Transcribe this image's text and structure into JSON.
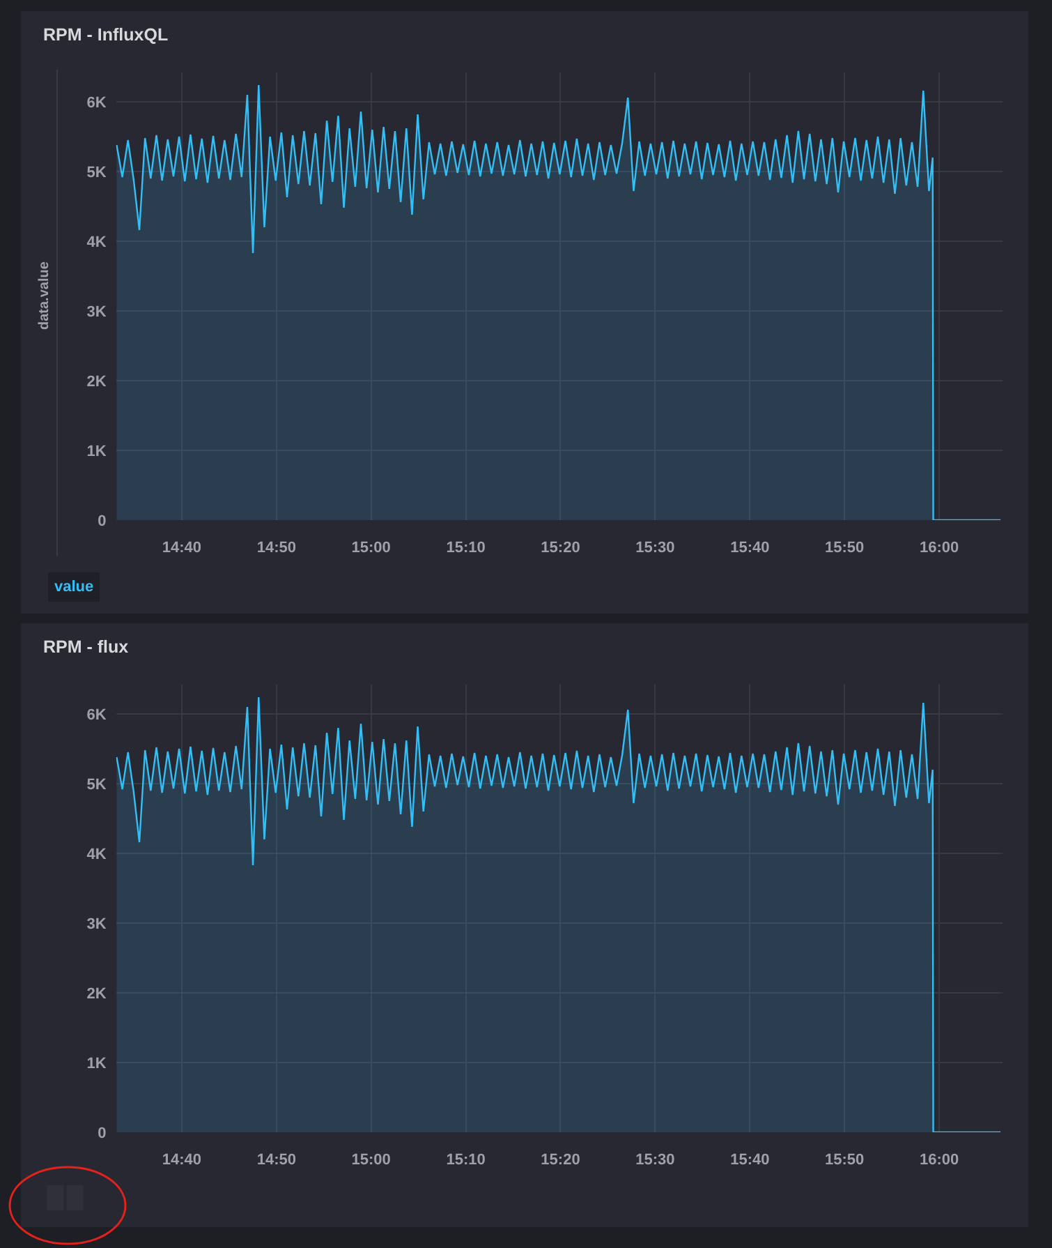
{
  "chart_data": [
    {
      "type": "area",
      "title": "RPM - InfluxQL",
      "ylabel": "data.value",
      "x": [
        14.552,
        14.562,
        14.572,
        14.582,
        14.592,
        14.602,
        14.612,
        14.622,
        14.632,
        14.642,
        14.652,
        14.662,
        14.672,
        14.682,
        14.692,
        14.702,
        14.712,
        14.722,
        14.732,
        14.742,
        14.752,
        14.762,
        14.772,
        14.782,
        14.792,
        14.802,
        14.812,
        14.822,
        14.832,
        14.842,
        14.852,
        14.862,
        14.872,
        14.882,
        14.892,
        14.902,
        14.912,
        14.922,
        14.932,
        14.942,
        14.952,
        14.962,
        14.972,
        14.982,
        14.992,
        15.002,
        15.012,
        15.022,
        15.032,
        15.042,
        15.052,
        15.062,
        15.072,
        15.082,
        15.092,
        15.102,
        15.112,
        15.122,
        15.132,
        15.142,
        15.152,
        15.162,
        15.172,
        15.182,
        15.192,
        15.202,
        15.212,
        15.222,
        15.232,
        15.242,
        15.252,
        15.262,
        15.272,
        15.282,
        15.292,
        15.302,
        15.312,
        15.322,
        15.332,
        15.342,
        15.352,
        15.362,
        15.372,
        15.382,
        15.392,
        15.402,
        15.412,
        15.422,
        15.432,
        15.442,
        15.452,
        15.462,
        15.472,
        15.482,
        15.492,
        15.502,
        15.512,
        15.522,
        15.532,
        15.542,
        15.552,
        15.562,
        15.572,
        15.582,
        15.592,
        15.602,
        15.612,
        15.622,
        15.632,
        15.642,
        15.652,
        15.662,
        15.672,
        15.682,
        15.692,
        15.702,
        15.712,
        15.722,
        15.732,
        15.742,
        15.752,
        15.762,
        15.772,
        15.782,
        15.792,
        15.802,
        15.812,
        15.822,
        15.832,
        15.842,
        15.852,
        15.862,
        15.872,
        15.882,
        15.892,
        15.902,
        15.912,
        15.922,
        15.932,
        15.942,
        15.952,
        15.962,
        15.972,
        15.982,
        15.9885,
        15.9895,
        16.108
      ],
      "series": [
        {
          "name": "value",
          "color": "#33bff5",
          "values": [
            5380,
            4920,
            5450,
            4880,
            4160,
            5480,
            4900,
            5520,
            4870,
            5460,
            4930,
            5500,
            4860,
            5530,
            4890,
            5470,
            4840,
            5510,
            4900,
            5450,
            4880,
            5540,
            4920,
            6100,
            3830,
            6240,
            4200,
            5500,
            4870,
            5560,
            4630,
            5520,
            4820,
            5580,
            4800,
            5550,
            4530,
            5730,
            4850,
            5800,
            4480,
            5620,
            4780,
            5860,
            4760,
            5600,
            4700,
            5640,
            4750,
            5580,
            4560,
            5620,
            4380,
            5820,
            4600,
            5420,
            4960,
            5400,
            4940,
            5430,
            4980,
            5390,
            4950,
            5440,
            4930,
            5400,
            4970,
            5420,
            4940,
            5380,
            4960,
            5450,
            4930,
            5400,
            4950,
            5430,
            4900,
            5410,
            4960,
            5440,
            4920,
            5470,
            4940,
            5400,
            4880,
            5420,
            4950,
            5380,
            4970,
            5410,
            6060,
            4720,
            5430,
            4940,
            5400,
            4960,
            5420,
            4900,
            5440,
            4930,
            5400,
            4960,
            5430,
            4890,
            5410,
            4950,
            5390,
            4920,
            5440,
            4870,
            5400,
            4950,
            5430,
            4940,
            5420,
            4880,
            5460,
            4910,
            5520,
            4840,
            5580,
            4890,
            5540,
            4860,
            5460,
            4820,
            5480,
            4700,
            5430,
            4920,
            5480,
            4870,
            5450,
            4900,
            5500,
            4840,
            5460,
            4680,
            5480,
            4800,
            5420,
            4780,
            6160,
            4720,
            5200,
            0,
            0
          ]
        }
      ],
      "xlim": [
        14.551,
        16.111
      ],
      "xticks": [
        {
          "value": 14.6667,
          "label": "14:40"
        },
        {
          "value": 14.8333,
          "label": "14:50"
        },
        {
          "value": 15,
          "label": "15:00"
        },
        {
          "value": 15.1667,
          "label": "15:10"
        },
        {
          "value": 15.3333,
          "label": "15:20"
        },
        {
          "value": 15.5,
          "label": "15:30"
        },
        {
          "value": 15.6667,
          "label": "15:40"
        },
        {
          "value": 15.8333,
          "label": "15:50"
        },
        {
          "value": 16,
          "label": "16:00"
        }
      ],
      "ylim": [
        0,
        6420
      ],
      "yticks": [
        0,
        {
          "value": 1000,
          "label": "1K"
        },
        {
          "value": 2000,
          "label": "2K"
        },
        {
          "value": 3000,
          "label": "3K"
        },
        {
          "value": 4000,
          "label": "4K"
        },
        {
          "value": 5000,
          "label": "5K"
        },
        {
          "value": 6000,
          "label": "6K"
        }
      ],
      "grid": true,
      "legend": "bottom left"
    },
    {
      "type": "area",
      "title": "RPM - flux",
      "x": [
        14.552,
        14.562,
        14.572,
        14.582,
        14.592,
        14.602,
        14.612,
        14.622,
        14.632,
        14.642,
        14.652,
        14.662,
        14.672,
        14.682,
        14.692,
        14.702,
        14.712,
        14.722,
        14.732,
        14.742,
        14.752,
        14.762,
        14.772,
        14.782,
        14.792,
        14.802,
        14.812,
        14.822,
        14.832,
        14.842,
        14.852,
        14.862,
        14.872,
        14.882,
        14.892,
        14.902,
        14.912,
        14.922,
        14.932,
        14.942,
        14.952,
        14.962,
        14.972,
        14.982,
        14.992,
        15.002,
        15.012,
        15.022,
        15.032,
        15.042,
        15.052,
        15.062,
        15.072,
        15.082,
        15.092,
        15.102,
        15.112,
        15.122,
        15.132,
        15.142,
        15.152,
        15.162,
        15.172,
        15.182,
        15.192,
        15.202,
        15.212,
        15.222,
        15.232,
        15.242,
        15.252,
        15.262,
        15.272,
        15.282,
        15.292,
        15.302,
        15.312,
        15.322,
        15.332,
        15.342,
        15.352,
        15.362,
        15.372,
        15.382,
        15.392,
        15.402,
        15.412,
        15.422,
        15.432,
        15.442,
        15.452,
        15.462,
        15.472,
        15.482,
        15.492,
        15.502,
        15.512,
        15.522,
        15.532,
        15.542,
        15.552,
        15.562,
        15.572,
        15.582,
        15.592,
        15.602,
        15.612,
        15.622,
        15.632,
        15.642,
        15.652,
        15.662,
        15.672,
        15.682,
        15.692,
        15.702,
        15.712,
        15.722,
        15.732,
        15.742,
        15.752,
        15.762,
        15.772,
        15.782,
        15.792,
        15.802,
        15.812,
        15.822,
        15.832,
        15.842,
        15.852,
        15.862,
        15.872,
        15.882,
        15.892,
        15.902,
        15.912,
        15.922,
        15.932,
        15.942,
        15.952,
        15.962,
        15.972,
        15.982,
        15.9885,
        15.9895,
        16.108
      ],
      "series": [
        {
          "color": "#33bff5",
          "values": [
            5380,
            4920,
            5450,
            4880,
            4160,
            5480,
            4900,
            5520,
            4870,
            5460,
            4930,
            5500,
            4860,
            5530,
            4890,
            5470,
            4840,
            5510,
            4900,
            5450,
            4880,
            5540,
            4920,
            6100,
            3830,
            6240,
            4200,
            5500,
            4870,
            5560,
            4630,
            5520,
            4820,
            5580,
            4800,
            5550,
            4530,
            5730,
            4850,
            5800,
            4480,
            5620,
            4780,
            5860,
            4760,
            5600,
            4700,
            5640,
            4750,
            5580,
            4560,
            5620,
            4380,
            5820,
            4600,
            5420,
            4960,
            5400,
            4940,
            5430,
            4980,
            5390,
            4950,
            5440,
            4930,
            5400,
            4970,
            5420,
            4940,
            5380,
            4960,
            5450,
            4930,
            5400,
            4950,
            5430,
            4900,
            5410,
            4960,
            5440,
            4920,
            5470,
            4940,
            5400,
            4880,
            5420,
            4950,
            5380,
            4970,
            5410,
            6060,
            4720,
            5430,
            4940,
            5400,
            4960,
            5420,
            4900,
            5440,
            4930,
            5400,
            4960,
            5430,
            4890,
            5410,
            4950,
            5390,
            4920,
            5440,
            4870,
            5400,
            4950,
            5430,
            4940,
            5420,
            4880,
            5460,
            4910,
            5520,
            4840,
            5580,
            4890,
            5540,
            4860,
            5460,
            4820,
            5480,
            4700,
            5430,
            4920,
            5480,
            4870,
            5450,
            4900,
            5500,
            4840,
            5460,
            4680,
            5480,
            4800,
            5420,
            4780,
            6160,
            4720,
            5200,
            0,
            0
          ]
        }
      ],
      "xlim": [
        14.551,
        16.111
      ],
      "xticks": [
        {
          "value": 14.6667,
          "label": "14:40"
        },
        {
          "value": 14.8333,
          "label": "14:50"
        },
        {
          "value": 15,
          "label": "15:00"
        },
        {
          "value": 15.1667,
          "label": "15:10"
        },
        {
          "value": 15.3333,
          "label": "15:20"
        },
        {
          "value": 15.5,
          "label": "15:30"
        },
        {
          "value": 15.6667,
          "label": "15:40"
        },
        {
          "value": 15.8333,
          "label": "15:50"
        },
        {
          "value": 16,
          "label": "16:00"
        }
      ],
      "ylim": [
        0,
        6420
      ],
      "yticks": [
        0,
        {
          "value": 1000,
          "label": "1K"
        },
        {
          "value": 2000,
          "label": "2K"
        },
        {
          "value": 3000,
          "label": "3K"
        },
        {
          "value": 4000,
          "label": "4K"
        },
        {
          "value": 5000,
          "label": "5K"
        },
        {
          "value": 6000,
          "label": "6K"
        }
      ],
      "grid": true
    }
  ]
}
